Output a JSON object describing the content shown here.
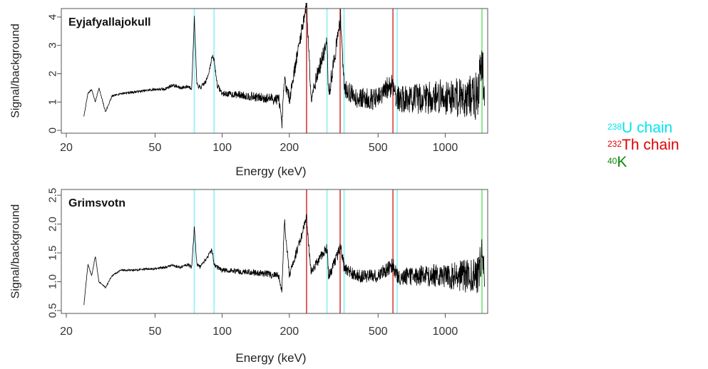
{
  "chart_data": [
    {
      "type": "line",
      "panel_label": "Eyjafyallajokull",
      "xlabel": "Energy (keV)",
      "ylabel": "Signal/background",
      "x_scale": "log",
      "xlim": [
        19,
        1550
      ],
      "ylim": [
        -0.1,
        4.3
      ],
      "x_ticks": [
        20,
        50,
        100,
        200,
        500,
        1000
      ],
      "y_ticks": [
        0,
        1,
        2,
        3,
        4
      ],
      "grid": false,
      "reference_lines": [
        {
          "chain": "U238",
          "x": [
            75,
            92,
            295,
            352,
            609
          ]
        },
        {
          "chain": "Th232",
          "x": [
            239,
            338,
            583
          ]
        },
        {
          "chain": "K40",
          "x": [
            1461
          ]
        }
      ],
      "series_outline": {
        "x": [
          24,
          25,
          26,
          27,
          28,
          30,
          32,
          35,
          40,
          45,
          50,
          55,
          60,
          65,
          70,
          73,
          75,
          77,
          80,
          85,
          88,
          90,
          92,
          95,
          100,
          120,
          150,
          180,
          185,
          190,
          200,
          239,
          250,
          295,
          300,
          340,
          352,
          400,
          500,
          583,
          609,
          700,
          800,
          1000,
          1200,
          1400,
          1461,
          1500
        ],
        "y": [
          0.5,
          1.3,
          1.45,
          1.0,
          1.5,
          0.65,
          1.2,
          1.3,
          1.35,
          1.4,
          1.45,
          1.45,
          1.6,
          1.5,
          1.55,
          1.5,
          4.0,
          1.6,
          1.5,
          1.75,
          2.2,
          2.6,
          2.5,
          1.6,
          1.3,
          1.25,
          1.15,
          1.1,
          0.1,
          1.8,
          1.1,
          4.5,
          1.2,
          3.1,
          1.2,
          4.0,
          1.5,
          1.15,
          1.1,
          1.7,
          1.1,
          1.1,
          1.15,
          1.2,
          1.2,
          1.2,
          2.5,
          1.2
        ],
        "noise_amplitude_at_x": {
          "100": 0.1,
          "500": 0.4,
          "1000": 0.65,
          "1500": 0.9
        }
      }
    },
    {
      "type": "line",
      "panel_label": "Grimsvotn",
      "xlabel": "Energy (keV)",
      "ylabel": "Signal/background",
      "x_scale": "log",
      "xlim": [
        19,
        1550
      ],
      "ylim": [
        0.45,
        2.6
      ],
      "x_ticks": [
        20,
        50,
        100,
        200,
        500,
        1000
      ],
      "y_ticks": [
        0.5,
        1.0,
        1.5,
        2.0,
        2.5
      ],
      "grid": false,
      "reference_lines": [
        {
          "chain": "U238",
          "x": [
            75,
            92,
            295,
            352,
            609
          ]
        },
        {
          "chain": "Th232",
          "x": [
            239,
            338,
            583
          ]
        },
        {
          "chain": "K40",
          "x": [
            1461
          ]
        }
      ],
      "series_outline": {
        "x": [
          24,
          25,
          26,
          27,
          28,
          30,
          32,
          35,
          40,
          45,
          50,
          55,
          60,
          65,
          70,
          73,
          75,
          77,
          80,
          85,
          88,
          90,
          92,
          95,
          100,
          120,
          150,
          180,
          185,
          190,
          200,
          239,
          250,
          295,
          300,
          340,
          352,
          400,
          500,
          583,
          609,
          700,
          800,
          1000,
          1200,
          1400,
          1461,
          1500
        ],
        "y": [
          0.6,
          1.3,
          1.1,
          1.45,
          1.0,
          0.9,
          1.1,
          1.2,
          1.2,
          1.22,
          1.22,
          1.25,
          1.28,
          1.25,
          1.3,
          1.25,
          1.95,
          1.3,
          1.25,
          1.4,
          1.5,
          1.55,
          1.3,
          1.25,
          1.2,
          1.18,
          1.15,
          1.1,
          0.8,
          2.1,
          1.1,
          2.1,
          1.15,
          1.6,
          1.1,
          1.6,
          1.25,
          1.1,
          1.1,
          1.3,
          1.1,
          1.1,
          1.12,
          1.1,
          1.1,
          1.1,
          1.5,
          1.1
        ],
        "noise_amplitude_at_x": {
          "100": 0.04,
          "500": 0.12,
          "1000": 0.22,
          "1500": 0.35
        }
      }
    }
  ],
  "legend": {
    "items": [
      {
        "sup": "238",
        "text": "U chain",
        "color": "#00e5ee"
      },
      {
        "sup": "232",
        "text": "Th chain",
        "color": "#e00000"
      },
      {
        "sup": "40",
        "text": "K",
        "color": "#0a8a0a"
      }
    ]
  },
  "colors": {
    "U238": "#9ff3f6",
    "Th232": "#e06060",
    "K40": "#8fe88f",
    "series": "#000000",
    "axis": "#555555"
  }
}
